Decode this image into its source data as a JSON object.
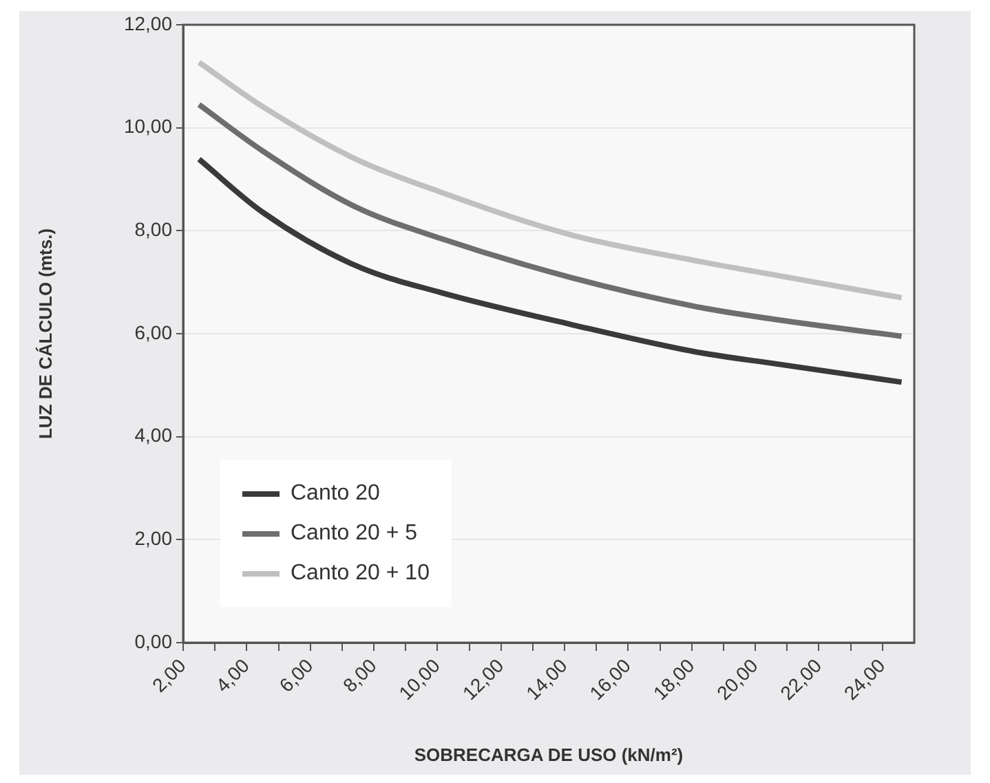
{
  "chart_data": {
    "type": "line",
    "xlabel": "SOBRECARGA DE USO (kN/m²)",
    "ylabel": "LUZ DE CÁLCULO (mts.)",
    "x": [
      2.5,
      4.5,
      7.4,
      10.1,
      14.2,
      18.1,
      20.7,
      24.6
    ],
    "series": [
      {
        "name": "Canto 20",
        "color": "#3a3a3a",
        "values": [
          9.39,
          8.36,
          7.33,
          6.8,
          6.18,
          5.65,
          5.41,
          5.06
        ]
      },
      {
        "name": "Canto 20 + 5",
        "color": "#6e6e70",
        "values": [
          10.45,
          9.55,
          8.47,
          7.85,
          7.09,
          6.53,
          6.27,
          5.95
        ]
      },
      {
        "name": "Canto 20 + 10",
        "color": "#c0c0c0",
        "values": [
          11.27,
          10.41,
          9.4,
          8.75,
          7.92,
          7.42,
          7.13,
          6.7
        ]
      }
    ],
    "xlim": [
      2,
      25
    ],
    "xticks": [
      {
        "value": 2,
        "label": "2,00"
      },
      {
        "value": 3,
        "label": null
      },
      {
        "value": 4,
        "label": "4,00"
      },
      {
        "value": 5,
        "label": null
      },
      {
        "value": 6,
        "label": "6,00"
      },
      {
        "value": 7,
        "label": null
      },
      {
        "value": 8,
        "label": "8,00"
      },
      {
        "value": 9,
        "label": null
      },
      {
        "value": 10,
        "label": "10,00"
      },
      {
        "value": 11,
        "label": null
      },
      {
        "value": 12,
        "label": "12,00"
      },
      {
        "value": 13,
        "label": null
      },
      {
        "value": 14,
        "label": "14,00"
      },
      {
        "value": 15,
        "label": null
      },
      {
        "value": 16,
        "label": "16,00"
      },
      {
        "value": 17,
        "label": null
      },
      {
        "value": 18,
        "label": "18,00"
      },
      {
        "value": 19,
        "label": null
      },
      {
        "value": 20,
        "label": "20,00"
      },
      {
        "value": 21,
        "label": null
      },
      {
        "value": 22,
        "label": "22,00"
      },
      {
        "value": 23,
        "label": null
      },
      {
        "value": 24,
        "label": "24,00"
      }
    ],
    "ylim": [
      0,
      12
    ],
    "yticks": [
      {
        "value": 0,
        "label": "0,00"
      },
      {
        "value": 2,
        "label": "2,00"
      },
      {
        "value": 4,
        "label": "4,00"
      },
      {
        "value": 6,
        "label": "6,00"
      },
      {
        "value": 8,
        "label": "8,00"
      },
      {
        "value": 10,
        "label": "10,00"
      },
      {
        "value": 12,
        "label": "12,00"
      }
    ],
    "grid": "y",
    "legend": "bottom left",
    "marker": "none",
    "line_style": "solid"
  }
}
